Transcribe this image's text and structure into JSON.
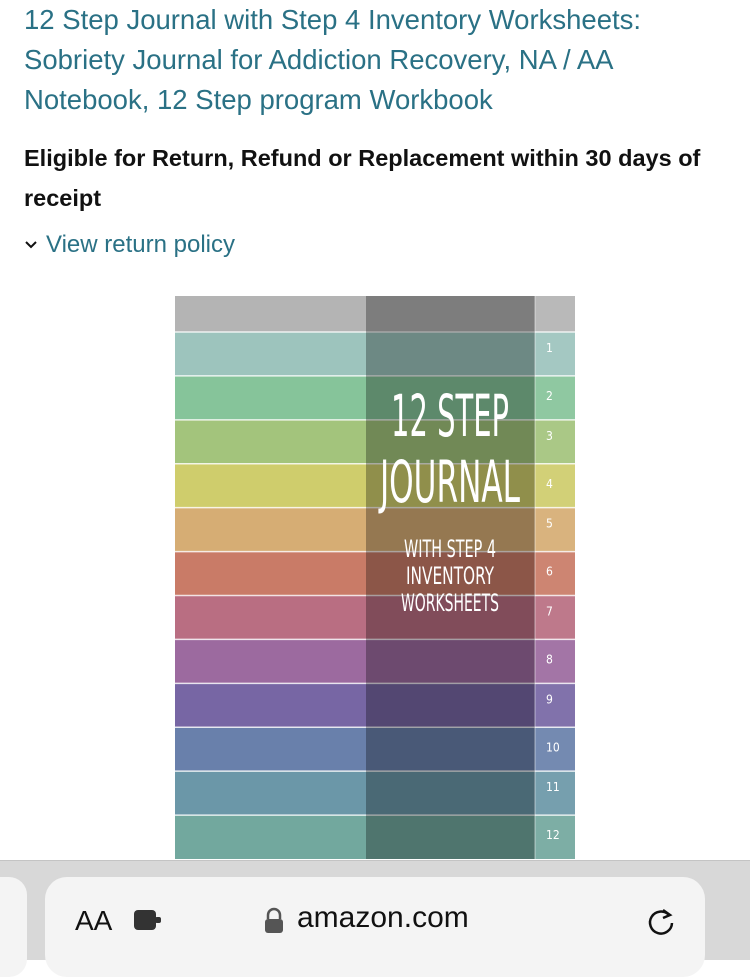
{
  "product": {
    "title": "12 Step Journal with Step 4 Inventory Worksheets: Sobriety Journal for Addiction Recovery, NA / AA Notebook, 12 Step program Workbook",
    "return_eligibility": "Eligible for Return, Refund or Replacement within 30 days of receipt",
    "return_policy_link": "View return policy"
  },
  "cover": {
    "title_lines": [
      "12 STEP",
      "JOURNAL"
    ],
    "subtitle_lines": [
      "WITH STEP 4",
      "INVENTORY",
      "WORKSHEETS"
    ],
    "tabs": [
      "1",
      "2",
      "3",
      "4",
      "5",
      "6",
      "7",
      "8",
      "9",
      "10",
      "11",
      "12"
    ]
  },
  "browser_bar": {
    "text_size_button": "AA",
    "url": "amazon.com"
  }
}
